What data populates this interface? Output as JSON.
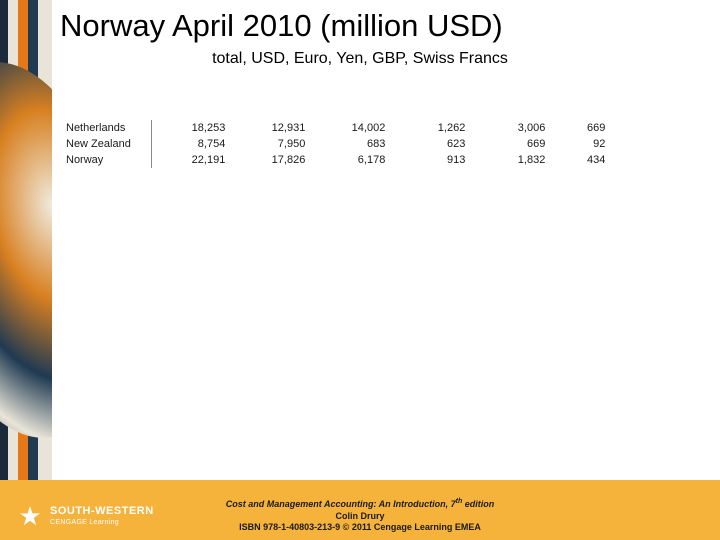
{
  "title": "Norway April 2010 (million USD)",
  "subtitle": "total, USD, Euro, Yen, GBP, Swiss Francs",
  "table": {
    "rows": [
      {
        "country": "Netherlands",
        "v1": "18,253",
        "v2": "12,931",
        "v3": "14,002",
        "v4": "1,262",
        "v5": "3,006",
        "v6": "669"
      },
      {
        "country": "New Zealand",
        "v1": "8,754",
        "v2": "7,950",
        "v3": "683",
        "v4": "623",
        "v5": "669",
        "v6": "92"
      },
      {
        "country": "Norway",
        "v1": "22,191",
        "v2": "17,826",
        "v3": "6,178",
        "v4": "913",
        "v5": "1,832",
        "v6": "434"
      }
    ]
  },
  "footer": {
    "line1_pre": "Cost and Management Accounting: An Introduction, 7",
    "line1_sup": "th",
    "line1_post": " edition",
    "line2": "Colin Drury",
    "line3": "ISBN 978-1-40803-213-9 © 2011 Cengage Learning EMEA"
  },
  "brand": {
    "main": "SOUTH-WESTERN",
    "sub": "CENGAGE Learning"
  },
  "colors": {
    "footer_bg": "#f5b33c",
    "brand_text": "#ffffff",
    "body_text": "#000000"
  }
}
